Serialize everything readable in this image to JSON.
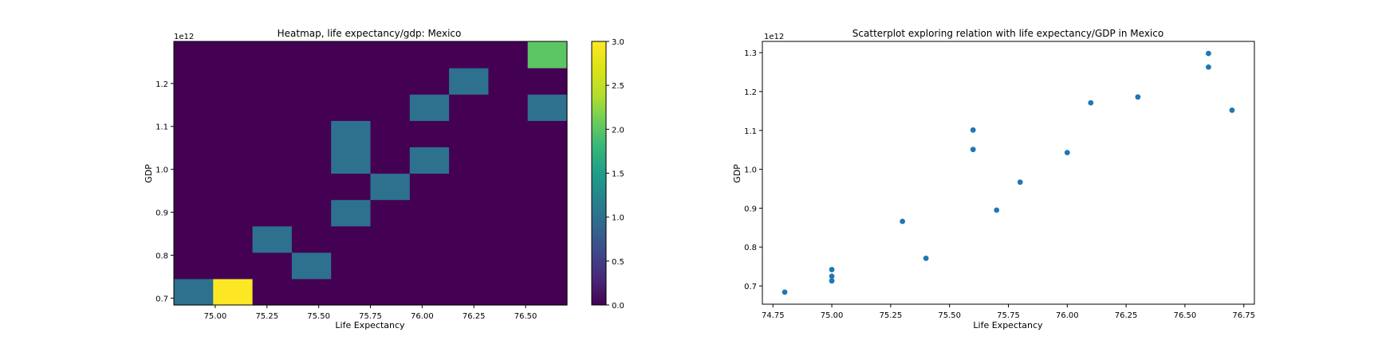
{
  "chart_data": [
    {
      "type": "heatmap",
      "title": "Heatmap, life expectancy/gdp: Mexico",
      "xlabel": "Life Expectancy",
      "ylabel": "GDP",
      "y_offset_label": "1e12",
      "xlim": [
        74.8,
        76.7
      ],
      "ylim": [
        0.684,
        1.298
      ],
      "xticks": [
        75.0,
        75.25,
        75.5,
        75.75,
        76.0,
        76.25,
        76.5
      ],
      "xtick_labels": [
        "75.00",
        "75.25",
        "75.50",
        "75.75",
        "76.00",
        "76.25",
        "76.50"
      ],
      "yticks": [
        0.7,
        0.8,
        0.9,
        1.0,
        1.1,
        1.2
      ],
      "ytick_labels": [
        "0.7",
        "0.8",
        "0.9",
        "1.0",
        "1.1",
        "1.2"
      ],
      "bins_x": 10,
      "bins_y": 10,
      "counts": [
        [
          1,
          3,
          0,
          0,
          0,
          0,
          0,
          0,
          0,
          0
        ],
        [
          0,
          0,
          0,
          1,
          0,
          0,
          0,
          0,
          0,
          0
        ],
        [
          0,
          0,
          1,
          0,
          0,
          0,
          0,
          0,
          0,
          0
        ],
        [
          0,
          0,
          0,
          0,
          1,
          0,
          0,
          0,
          0,
          0
        ],
        [
          0,
          0,
          0,
          0,
          0,
          1,
          0,
          0,
          0,
          0
        ],
        [
          0,
          0,
          0,
          0,
          1,
          0,
          1,
          0,
          0,
          0
        ],
        [
          0,
          0,
          0,
          0,
          1,
          0,
          0,
          0,
          0,
          0
        ],
        [
          0,
          0,
          0,
          0,
          0,
          0,
          1,
          0,
          0,
          1
        ],
        [
          0,
          0,
          0,
          0,
          0,
          0,
          0,
          1,
          0,
          0
        ],
        [
          0,
          0,
          0,
          0,
          0,
          0,
          0,
          0,
          0,
          2
        ]
      ],
      "colormap": "viridis",
      "colorbar": {
        "min": 0,
        "max": 3,
        "ticks": [
          0.0,
          0.5,
          1.0,
          1.5,
          2.0,
          2.5,
          3.0
        ],
        "tick_labels": [
          "0.0",
          "0.5",
          "1.0",
          "1.5",
          "2.0",
          "2.5",
          "3.0"
        ]
      }
    },
    {
      "type": "scatter",
      "title": "Scatterplot exploring relation with life expectancy/GDP in Mexico",
      "xlabel": "Life Expectancy",
      "ylabel": "GDP",
      "y_offset_label": "1e12",
      "xlim": [
        74.705,
        76.795
      ],
      "ylim": [
        0.653,
        1.329
      ],
      "xticks": [
        74.75,
        75.0,
        75.25,
        75.5,
        75.75,
        76.0,
        76.25,
        76.5,
        76.75
      ],
      "xtick_labels": [
        "74.75",
        "75.00",
        "75.25",
        "75.50",
        "75.75",
        "76.00",
        "76.25",
        "76.50",
        "76.75"
      ],
      "yticks": [
        0.7,
        0.8,
        0.9,
        1.0,
        1.1,
        1.2,
        1.3
      ],
      "ytick_labels": [
        "0.7",
        "0.8",
        "0.9",
        "1.0",
        "1.1",
        "1.2",
        "1.3"
      ],
      "x": [
        74.8,
        75.0,
        75.0,
        75.0,
        75.3,
        75.4,
        75.6,
        75.6,
        75.7,
        75.8,
        76.0,
        76.1,
        76.3,
        76.6,
        76.6,
        76.7
      ],
      "y": [
        0.684,
        0.713,
        0.725,
        0.742,
        0.866,
        0.771,
        1.101,
        1.051,
        0.895,
        0.967,
        1.043,
        1.171,
        1.186,
        1.263,
        1.298,
        1.152
      ],
      "marker_color": "#1f77b4"
    }
  ]
}
